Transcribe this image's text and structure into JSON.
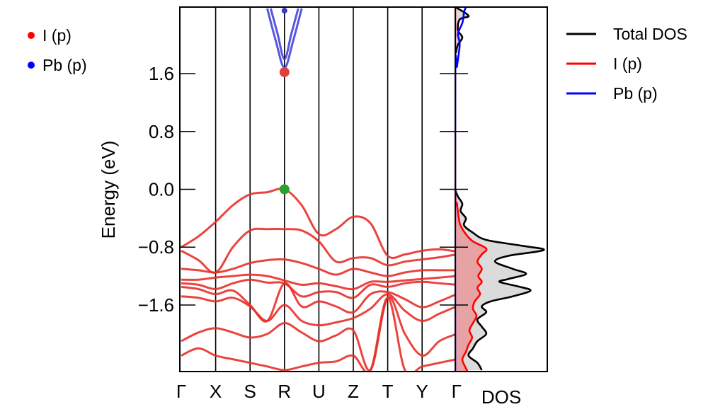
{
  "chart_data": {
    "type": "line",
    "ylabel": "Energy (eV)",
    "ylim": [
      -2.52,
      2.52
    ],
    "yticks": [
      -1.6,
      -0.8,
      0.0,
      0.8,
      1.6
    ],
    "ytick_labels": [
      "−1.6",
      "−0.8",
      "0.0",
      "0.8",
      "1.6"
    ],
    "band_panel": {
      "kpoints": [
        "Γ",
        "X",
        "S",
        "R",
        "U",
        "Z",
        "T",
        "Y",
        "Γ"
      ],
      "projection_legend": [
        {
          "name": "I (p)",
          "color": "#ff0000"
        },
        {
          "name": "Pb (p)",
          "color": "#0000ff"
        }
      ],
      "valence_bands": [
        {
          "name": "vb1",
          "points": [
            [
              0,
              -0.8
            ],
            [
              0.5,
              -0.65
            ],
            [
              1,
              -0.45
            ],
            [
              1.5,
              -0.22
            ],
            [
              2,
              -0.07
            ],
            [
              2.5,
              -0.04
            ],
            [
              3,
              0.0
            ],
            [
              3.5,
              -0.22
            ],
            [
              4,
              -0.62
            ],
            [
              4.5,
              -0.55
            ],
            [
              5,
              -0.38
            ],
            [
              5.5,
              -0.47
            ],
            [
              6,
              -0.92
            ],
            [
              6.5,
              -0.9
            ],
            [
              7,
              -0.85
            ],
            [
              7.5,
              -0.83
            ],
            [
              8,
              -0.86
            ]
          ]
        },
        {
          "name": "vb2",
          "points": [
            [
              0,
              -0.85
            ],
            [
              0.5,
              -0.98
            ],
            [
              1,
              -1.15
            ],
            [
              1.5,
              -0.8
            ],
            [
              2,
              -0.57
            ],
            [
              2.5,
              -0.55
            ],
            [
              3,
              -0.55
            ],
            [
              3.5,
              -0.57
            ],
            [
              4,
              -0.72
            ],
            [
              4.5,
              -1.0
            ],
            [
              5,
              -0.95
            ],
            [
              5.5,
              -0.95
            ],
            [
              6,
              -1.05
            ],
            [
              6.5,
              -1.0
            ],
            [
              7,
              -0.97
            ],
            [
              7.5,
              -0.94
            ],
            [
              8,
              -0.9
            ]
          ]
        },
        {
          "name": "vb3",
          "points": [
            [
              0,
              -1.1
            ],
            [
              0.5,
              -1.12
            ],
            [
              1,
              -1.15
            ],
            [
              1.5,
              -1.1
            ],
            [
              2,
              -1.02
            ],
            [
              2.5,
              -0.98
            ],
            [
              3,
              -0.97
            ],
            [
              3.5,
              -1.02
            ],
            [
              4,
              -1.1
            ],
            [
              4.5,
              -1.18
            ],
            [
              5,
              -1.1
            ],
            [
              5.5,
              -1.15
            ],
            [
              6,
              -1.2
            ],
            [
              6.5,
              -1.15
            ],
            [
              7,
              -1.12
            ],
            [
              7.5,
              -1.12
            ],
            [
              8,
              -1.12
            ]
          ]
        },
        {
          "name": "vb4",
          "points": [
            [
              0,
              -1.25
            ],
            [
              0.5,
              -1.25
            ],
            [
              1,
              -1.22
            ],
            [
              1.5,
              -1.2
            ],
            [
              2,
              -1.18
            ],
            [
              2.5,
              -1.2
            ],
            [
              3,
              -1.26
            ],
            [
              3.5,
              -1.32
            ],
            [
              4,
              -1.3
            ],
            [
              4.5,
              -1.34
            ],
            [
              5,
              -1.38
            ],
            [
              5.5,
              -1.28
            ],
            [
              6,
              -1.28
            ],
            [
              6.5,
              -1.26
            ],
            [
              7,
              -1.24
            ],
            [
              7.5,
              -1.22
            ],
            [
              8,
              -1.2
            ]
          ]
        },
        {
          "name": "vb5",
          "points": [
            [
              0,
              -1.3
            ],
            [
              0.5,
              -1.32
            ],
            [
              1,
              -1.38
            ],
            [
              1.5,
              -1.3
            ],
            [
              2,
              -1.25
            ],
            [
              2.5,
              -1.29
            ],
            [
              3,
              -1.3
            ],
            [
              3.5,
              -1.48
            ],
            [
              4,
              -1.42
            ],
            [
              4.5,
              -1.42
            ],
            [
              5,
              -1.5
            ],
            [
              5.5,
              -1.32
            ],
            [
              6,
              -1.35
            ],
            [
              6.5,
              -1.3
            ],
            [
              7,
              -1.28
            ],
            [
              7.5,
              -1.3
            ],
            [
              8,
              -1.32
            ]
          ]
        },
        {
          "name": "vb6",
          "points": [
            [
              0,
              -1.35
            ],
            [
              0.5,
              -1.38
            ],
            [
              1,
              -1.45
            ],
            [
              1.5,
              -1.4
            ],
            [
              2,
              -1.6
            ],
            [
              2.5,
              -1.82
            ],
            [
              3,
              -1.3
            ],
            [
              3.5,
              -1.62
            ],
            [
              4,
              -1.55
            ],
            [
              4.5,
              -1.62
            ],
            [
              5,
              -1.7
            ],
            [
              5.5,
              -1.45
            ],
            [
              6,
              -1.42
            ],
            [
              6.5,
              -1.52
            ],
            [
              7,
              -1.63
            ],
            [
              7.5,
              -1.55
            ],
            [
              8,
              -1.45
            ]
          ]
        },
        {
          "name": "vb7",
          "points": [
            [
              0,
              -1.48
            ],
            [
              0.5,
              -1.5
            ],
            [
              1,
              -1.55
            ],
            [
              1.5,
              -1.5
            ],
            [
              2,
              -1.62
            ],
            [
              2.5,
              -1.82
            ],
            [
              3,
              -1.6
            ],
            [
              3.5,
              -1.82
            ],
            [
              4,
              -1.88
            ],
            [
              4.5,
              -1.84
            ],
            [
              5,
              -1.78
            ],
            [
              5.5,
              -1.65
            ],
            [
              6,
              -1.45
            ],
            [
              6.5,
              -1.68
            ],
            [
              7,
              -1.82
            ],
            [
              7.5,
              -1.72
            ],
            [
              8,
              -1.62
            ]
          ]
        },
        {
          "name": "vb8",
          "points": [
            [
              0,
              -2.1
            ],
            [
              0.5,
              -1.98
            ],
            [
              1,
              -1.92
            ],
            [
              1.5,
              -1.98
            ],
            [
              2,
              -2.05
            ],
            [
              2.5,
              -2.0
            ],
            [
              3,
              -1.85
            ],
            [
              3.5,
              -1.98
            ],
            [
              4,
              -2.1
            ],
            [
              4.5,
              -2.02
            ],
            [
              5,
              -1.95
            ],
            [
              5.5,
              -2.5
            ],
            [
              6,
              -1.5
            ],
            [
              6.5,
              -2.0
            ],
            [
              7,
              -2.3
            ],
            [
              7.5,
              -2.1
            ],
            [
              8,
              -2.0
            ]
          ]
        },
        {
          "name": "vb9",
          "points": [
            [
              0,
              -2.3
            ],
            [
              0.5,
              -2.2
            ],
            [
              1,
              -2.3
            ],
            [
              1.5,
              -2.35
            ],
            [
              2,
              -2.4
            ],
            [
              2.5,
              -2.45
            ],
            [
              3,
              -2.5
            ],
            [
              3.5,
              -2.45
            ],
            [
              4,
              -2.4
            ],
            [
              4.5,
              -2.38
            ],
            [
              5,
              -2.3
            ],
            [
              5.5,
              -2.5
            ],
            [
              6,
              -1.5
            ],
            [
              6.5,
              -2.5
            ],
            [
              7,
              -2.45
            ],
            [
              7.5,
              -2.4
            ],
            [
              8,
              -2.35
            ]
          ]
        }
      ],
      "conduction_bands": [
        {
          "name": "cb1",
          "points": [
            [
              2.5,
              2.5
            ],
            [
              2.75,
              2.05
            ],
            [
              3,
              1.68
            ],
            [
              3.25,
              2.05
            ],
            [
              3.5,
              2.5
            ]
          ]
        },
        {
          "name": "cb2",
          "points": [
            [
              2.6,
              2.5
            ],
            [
              2.8,
              2.15
            ],
            [
              3,
              1.8
            ],
            [
              3.2,
              2.15
            ],
            [
              3.4,
              2.5
            ]
          ]
        }
      ],
      "markers": [
        {
          "name": "vbm",
          "k": 3,
          "energy": 0.0,
          "color": "#2ca02c"
        },
        {
          "name": "cbm",
          "k": 3,
          "energy": 1.62,
          "color": "#e0403c"
        },
        {
          "name": "cb-top",
          "k": 3,
          "energy": 2.47,
          "color": "#3a3ac8"
        }
      ]
    },
    "dos_panel": {
      "xlabel": "DOS",
      "legend": [
        {
          "name": "Total DOS",
          "color": "#000000"
        },
        {
          "name": "I (p)",
          "color": "#ff0000"
        },
        {
          "name": "Pb (p)",
          "color": "#0000ff"
        }
      ],
      "xlim": [
        0,
        10.4
      ],
      "series": [
        {
          "name": "Total DOS",
          "color": "#000000",
          "points": [
            [
              0,
              2.52
            ],
            [
              1.5,
              2.4
            ],
            [
              0.5,
              2.35
            ],
            [
              0.3,
              2.2
            ],
            [
              0.8,
              2.1
            ],
            [
              0.3,
              2.0
            ],
            [
              0.1,
              1.9
            ],
            [
              0,
              1.75
            ],
            [
              0,
              0.1
            ],
            [
              0,
              0.0
            ],
            [
              0.3,
              -0.1
            ],
            [
              0.8,
              -0.2
            ],
            [
              0.6,
              -0.3
            ],
            [
              1.2,
              -0.4
            ],
            [
              1.0,
              -0.5
            ],
            [
              2.0,
              -0.6
            ],
            [
              3.5,
              -0.7
            ],
            [
              7.5,
              -0.78
            ],
            [
              10.0,
              -0.84
            ],
            [
              6.0,
              -0.92
            ],
            [
              4.5,
              -1.0
            ],
            [
              6.5,
              -1.1
            ],
            [
              8.0,
              -1.17
            ],
            [
              6.0,
              -1.24
            ],
            [
              5.0,
              -1.28
            ],
            [
              7.0,
              -1.34
            ],
            [
              8.5,
              -1.4
            ],
            [
              6.5,
              -1.48
            ],
            [
              4.0,
              -1.55
            ],
            [
              3.0,
              -1.62
            ],
            [
              3.5,
              -1.7
            ],
            [
              2.5,
              -1.8
            ],
            [
              3.0,
              -1.9
            ],
            [
              3.5,
              -2.0
            ],
            [
              2.5,
              -2.1
            ],
            [
              2.0,
              -2.2
            ],
            [
              1.5,
              -2.3
            ],
            [
              2.5,
              -2.4
            ],
            [
              3.0,
              -2.5
            ]
          ]
        },
        {
          "name": "I (p)",
          "color": "#ff0000",
          "points": [
            [
              0,
              2.52
            ],
            [
              0,
              0.05
            ],
            [
              0.2,
              -0.2
            ],
            [
              0.4,
              -0.4
            ],
            [
              0.6,
              -0.5
            ],
            [
              1.2,
              -0.62
            ],
            [
              2.0,
              -0.72
            ],
            [
              3.5,
              -0.82
            ],
            [
              3.0,
              -0.9
            ],
            [
              2.5,
              -1.0
            ],
            [
              3.0,
              -1.1
            ],
            [
              2.6,
              -1.2
            ],
            [
              3.0,
              -1.28
            ],
            [
              2.5,
              -1.36
            ],
            [
              2.8,
              -1.45
            ],
            [
              2.2,
              -1.55
            ],
            [
              2.0,
              -1.65
            ],
            [
              2.4,
              -1.75
            ],
            [
              2.0,
              -1.85
            ],
            [
              1.6,
              -1.95
            ],
            [
              1.9,
              -2.05
            ],
            [
              1.5,
              -2.15
            ],
            [
              1.2,
              -2.25
            ],
            [
              0.8,
              -2.35
            ],
            [
              1.1,
              -2.45
            ],
            [
              1.4,
              -2.52
            ]
          ]
        },
        {
          "name": "Pb (p)",
          "color": "#0000ff",
          "points": [
            [
              0,
              -2.52
            ],
            [
              0,
              1.5
            ],
            [
              0.2,
              1.7
            ],
            [
              0.5,
              2.0
            ],
            [
              0.3,
              2.15
            ],
            [
              0.8,
              2.3
            ],
            [
              1.0,
              2.45
            ],
            [
              1.2,
              2.52
            ]
          ]
        }
      ]
    }
  }
}
